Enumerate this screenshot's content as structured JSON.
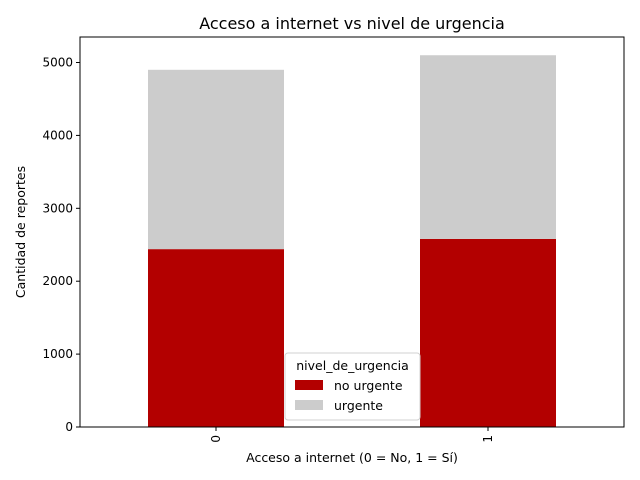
{
  "chart_data": {
    "type": "bar",
    "stacked": true,
    "title": "Acceso a internet vs nivel de urgencia",
    "xlabel": "Acceso a internet (0 = No, 1 = Sí)",
    "ylabel": "Cantidad de reportes",
    "categories": [
      "0",
      "1"
    ],
    "ylim": [
      0,
      5350
    ],
    "yticks": [
      0,
      1000,
      2000,
      3000,
      4000,
      5000
    ],
    "grid": false,
    "legend": {
      "title": "nivel_de_urgencia",
      "position": "bottom-center"
    },
    "series": [
      {
        "name": "no urgente",
        "color": "#b30000",
        "values": [
          2440,
          2580
        ]
      },
      {
        "name": "urgente",
        "color": "#cccccc",
        "values": [
          2460,
          2520
        ]
      }
    ]
  }
}
